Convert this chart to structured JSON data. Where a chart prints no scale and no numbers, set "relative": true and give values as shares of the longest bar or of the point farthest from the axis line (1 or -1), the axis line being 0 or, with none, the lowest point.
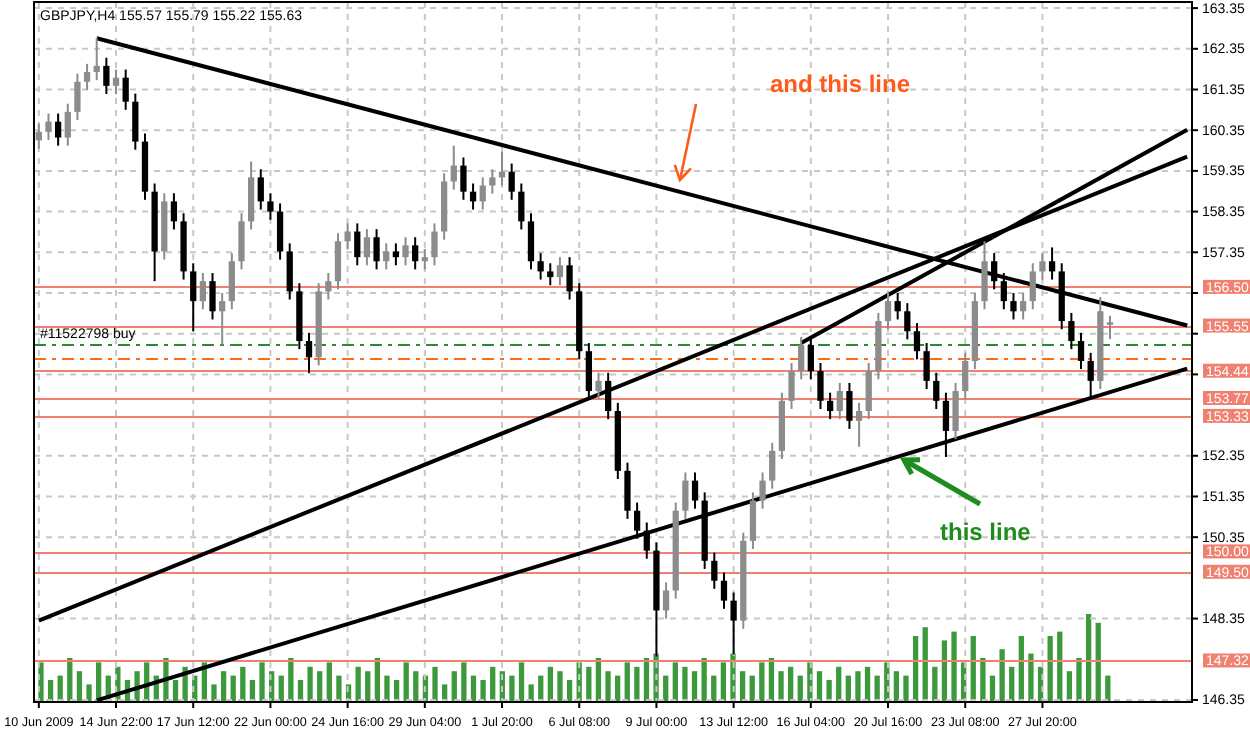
{
  "chart_data": [
    {
      "type": "candlestick",
      "title": "GBPJPY,H4 155.57 155.79 155.22 155.63",
      "categories": [
        "10 Jun 2009",
        null,
        null,
        null,
        null,
        null,
        null,
        null,
        "14 Jun 22:00",
        null,
        null,
        null,
        null,
        null,
        null,
        null,
        "17 Jun 12:00",
        null,
        null,
        null,
        null,
        null,
        null,
        null,
        "22 Jun 00:00",
        null,
        null,
        null,
        null,
        null,
        null,
        null,
        "24 Jun 16:00",
        null,
        null,
        null,
        null,
        null,
        null,
        null,
        "29 Jun 04:00",
        null,
        null,
        null,
        null,
        null,
        null,
        null,
        "1 Jul 20:00",
        null,
        null,
        null,
        null,
        null,
        null,
        null,
        "6 Jul 08:00",
        null,
        null,
        null,
        null,
        null,
        null,
        null,
        "9 Jul 00:00",
        null,
        null,
        null,
        null,
        null,
        null,
        null,
        "13 Jul 12:00",
        null,
        null,
        null,
        null,
        null,
        null,
        null,
        "16 Jul 04:00",
        null,
        null,
        null,
        null,
        null,
        null,
        null,
        "20 Jul 16:00",
        null,
        null,
        null,
        null,
        null,
        null,
        null,
        "23 Jul 08:00",
        null,
        null,
        null,
        null,
        null,
        null,
        null,
        "27 Jul 20:00",
        null,
        null,
        null,
        null,
        null,
        null,
        null,
        null,
        null,
        null,
        null,
        null,
        null,
        null,
        null
      ],
      "ohlc": [
        [
          160.1,
          160.51,
          159.9,
          160.31
        ],
        [
          160.31,
          160.76,
          160.11,
          160.56
        ],
        [
          160.56,
          160.76,
          159.97,
          160.17
        ],
        [
          160.17,
          161.0,
          159.97,
          160.8
        ],
        [
          160.8,
          161.74,
          160.6,
          161.54
        ],
        [
          161.54,
          161.98,
          161.34,
          161.78
        ],
        [
          161.78,
          162.62,
          161.58,
          161.93
        ],
        [
          161.93,
          162.13,
          161.24,
          161.44
        ],
        [
          161.44,
          161.84,
          161.24,
          161.64
        ],
        [
          161.64,
          161.84,
          160.85,
          161.05
        ],
        [
          161.05,
          161.25,
          159.87,
          160.07
        ],
        [
          160.07,
          160.27,
          158.64,
          158.84
        ],
        [
          158.84,
          159.04,
          156.64,
          157.37
        ],
        [
          157.37,
          158.8,
          157.17,
          158.6
        ],
        [
          158.6,
          158.8,
          157.91,
          158.11
        ],
        [
          158.11,
          158.31,
          156.68,
          156.88
        ],
        [
          156.88,
          157.08,
          155.41,
          156.15
        ],
        [
          156.15,
          156.84,
          155.95,
          156.64
        ],
        [
          156.64,
          156.84,
          155.7,
          155.9
        ],
        [
          155.9,
          156.35,
          155.07,
          156.15
        ],
        [
          156.15,
          157.33,
          155.95,
          157.13
        ],
        [
          157.13,
          158.31,
          156.93,
          158.11
        ],
        [
          158.11,
          159.58,
          157.91,
          159.19
        ],
        [
          159.19,
          159.39,
          158.4,
          158.6
        ],
        [
          158.6,
          158.8,
          158.15,
          158.35
        ],
        [
          158.35,
          158.55,
          157.17,
          157.37
        ],
        [
          157.37,
          157.57,
          156.19,
          156.39
        ],
        [
          156.39,
          156.59,
          154.97,
          155.17
        ],
        [
          155.17,
          155.37,
          154.38,
          154.77
        ],
        [
          154.77,
          156.59,
          154.57,
          156.39
        ],
        [
          156.39,
          156.84,
          156.19,
          156.64
        ],
        [
          156.64,
          157.82,
          156.44,
          157.62
        ],
        [
          157.62,
          158.06,
          157.42,
          157.86
        ],
        [
          157.86,
          158.06,
          157.03,
          157.23
        ],
        [
          157.23,
          157.92,
          157.03,
          157.72
        ],
        [
          157.72,
          157.92,
          156.93,
          157.13
        ],
        [
          157.13,
          157.57,
          156.93,
          157.37
        ],
        [
          157.37,
          157.57,
          157.03,
          157.23
        ],
        [
          157.23,
          157.72,
          157.03,
          157.52
        ],
        [
          157.52,
          157.72,
          156.93,
          157.13
        ],
        [
          157.13,
          157.43,
          156.93,
          157.23
        ],
        [
          157.23,
          158.06,
          157.03,
          157.86
        ],
        [
          157.86,
          159.29,
          157.66,
          159.09
        ],
        [
          159.09,
          159.97,
          158.89,
          159.48
        ],
        [
          159.48,
          159.68,
          158.64,
          158.84
        ],
        [
          158.84,
          159.04,
          158.4,
          158.6
        ],
        [
          158.6,
          159.19,
          158.4,
          158.99
        ],
        [
          158.99,
          159.39,
          158.79,
          159.19
        ],
        [
          159.19,
          159.82,
          158.99,
          159.33
        ],
        [
          159.33,
          159.53,
          158.64,
          158.84
        ],
        [
          158.84,
          159.04,
          157.91,
          158.11
        ],
        [
          158.11,
          158.31,
          156.93,
          157.13
        ],
        [
          157.13,
          157.33,
          156.68,
          156.88
        ],
        [
          156.88,
          157.08,
          156.54,
          156.74
        ],
        [
          156.74,
          157.23,
          156.54,
          157.03
        ],
        [
          157.03,
          157.23,
          156.19,
          156.39
        ],
        [
          156.39,
          156.59,
          154.72,
          154.92
        ],
        [
          154.92,
          155.12,
          153.74,
          153.94
        ],
        [
          153.94,
          154.39,
          153.74,
          154.19
        ],
        [
          154.19,
          154.39,
          153.25,
          153.45
        ],
        [
          153.45,
          153.65,
          151.78,
          151.98
        ],
        [
          151.98,
          152.18,
          150.8,
          151.0
        ],
        [
          151.0,
          151.2,
          150.31,
          150.51
        ],
        [
          150.51,
          150.71,
          149.82,
          150.02
        ],
        [
          150.02,
          150.22,
          147.42,
          148.55
        ],
        [
          148.55,
          149.24,
          148.35,
          149.04
        ],
        [
          149.04,
          151.2,
          148.84,
          151.0
        ],
        [
          151.0,
          151.94,
          150.8,
          151.74
        ],
        [
          151.74,
          151.94,
          151.05,
          151.25
        ],
        [
          151.25,
          151.45,
          149.57,
          149.77
        ],
        [
          149.77,
          149.97,
          149.08,
          149.28
        ],
        [
          149.28,
          149.48,
          148.59,
          148.79
        ],
        [
          148.79,
          148.99,
          147.47,
          148.3
        ],
        [
          148.3,
          150.46,
          148.1,
          150.26
        ],
        [
          150.26,
          151.45,
          150.06,
          151.25
        ],
        [
          151.25,
          151.94,
          151.05,
          151.74
        ],
        [
          151.74,
          152.67,
          151.54,
          152.47
        ],
        [
          152.47,
          153.9,
          152.27,
          153.7
        ],
        [
          153.7,
          154.63,
          153.5,
          154.43
        ],
        [
          154.43,
          155.27,
          154.23,
          155.07
        ],
        [
          155.07,
          155.27,
          154.23,
          154.43
        ],
        [
          154.43,
          154.63,
          153.5,
          153.7
        ],
        [
          153.7,
          153.9,
          153.25,
          153.45
        ],
        [
          153.45,
          154.14,
          153.25,
          153.94
        ],
        [
          153.94,
          154.14,
          153.01,
          153.21
        ],
        [
          153.21,
          153.65,
          152.57,
          153.45
        ],
        [
          153.45,
          154.63,
          153.25,
          154.43
        ],
        [
          154.43,
          155.86,
          154.23,
          155.66
        ],
        [
          155.66,
          156.35,
          155.46,
          156.15
        ],
        [
          156.15,
          156.35,
          155.7,
          155.9
        ],
        [
          155.9,
          156.1,
          155.21,
          155.41
        ],
        [
          155.41,
          155.61,
          154.72,
          154.92
        ],
        [
          154.92,
          155.12,
          153.99,
          154.19
        ],
        [
          154.19,
          154.39,
          153.5,
          153.7
        ],
        [
          153.7,
          153.9,
          152.32,
          152.96
        ],
        [
          152.96,
          154.14,
          152.76,
          153.94
        ],
        [
          153.94,
          154.88,
          153.74,
          154.68
        ],
        [
          154.68,
          156.35,
          154.48,
          156.15
        ],
        [
          156.15,
          157.62,
          155.95,
          157.13
        ],
        [
          157.13,
          157.33,
          156.44,
          156.64
        ],
        [
          156.64,
          156.84,
          155.95,
          156.15
        ],
        [
          156.15,
          156.35,
          155.7,
          155.9
        ],
        [
          155.9,
          156.35,
          155.7,
          156.15
        ],
        [
          156.15,
          157.08,
          155.95,
          156.88
        ],
        [
          156.88,
          157.33,
          156.68,
          157.13
        ],
        [
          157.13,
          157.47,
          156.68,
          156.88
        ],
        [
          156.88,
          157.08,
          155.46,
          155.66
        ],
        [
          155.66,
          155.86,
          154.97,
          155.17
        ],
        [
          155.17,
          155.37,
          154.48,
          154.68
        ],
        [
          154.68,
          154.88,
          153.79,
          154.19
        ],
        [
          154.19,
          156.25,
          153.99,
          155.9
        ],
        [
          155.57,
          155.79,
          155.22,
          155.63
        ],
        null,
        null,
        null,
        null,
        null,
        null,
        null,
        null
      ],
      "series": [
        {
          "type": "line",
          "color": "#000000",
          "values": [
            null,
            null,
            null,
            null,
            null,
            null,
            162.61,
            null,
            null,
            null,
            null,
            null,
            null,
            null,
            null,
            null,
            null,
            null,
            null,
            null,
            null,
            null,
            null,
            null,
            null,
            null,
            null,
            null,
            null,
            null,
            null,
            null,
            null,
            null,
            null,
            null,
            null,
            null,
            null,
            null,
            null,
            null,
            null,
            null,
            null,
            null,
            null,
            null,
            null,
            null,
            null,
            null,
            null,
            null,
            null,
            null,
            null,
            null,
            null,
            null,
            null,
            null,
            null,
            null,
            null,
            null,
            null,
            null,
            null,
            null,
            null,
            null,
            null,
            null,
            null,
            null,
            null,
            null,
            null,
            null,
            null,
            null,
            null,
            null,
            null,
            null,
            null,
            null,
            null,
            null,
            null,
            null,
            null,
            null,
            null,
            null,
            null,
            null,
            null,
            null,
            null,
            null,
            null,
            null,
            null,
            null,
            null,
            null,
            null,
            null,
            null,
            null,
            null,
            null,
            null,
            null,
            null,
            null,
            null,
            155.55
          ]
        },
        {
          "type": "line",
          "color": "#000000",
          "values": [
            148.3,
            null,
            null,
            null,
            null,
            null,
            null,
            null,
            null,
            null,
            null,
            null,
            null,
            null,
            null,
            null,
            null,
            null,
            null,
            null,
            null,
            null,
            null,
            null,
            null,
            null,
            null,
            null,
            null,
            null,
            null,
            null,
            null,
            null,
            null,
            null,
            null,
            null,
            null,
            null,
            null,
            null,
            null,
            null,
            null,
            null,
            null,
            null,
            null,
            null,
            null,
            null,
            null,
            null,
            null,
            null,
            null,
            null,
            null,
            null,
            null,
            null,
            null,
            null,
            null,
            null,
            null,
            null,
            null,
            null,
            null,
            null,
            null,
            null,
            null,
            null,
            null,
            null,
            null,
            null,
            null,
            null,
            null,
            null,
            null,
            null,
            null,
            null,
            null,
            null,
            null,
            null,
            null,
            null,
            null,
            null,
            null,
            null,
            null,
            null,
            null,
            null,
            null,
            null,
            null,
            null,
            null,
            null,
            null,
            null,
            null,
            null,
            null,
            null,
            null,
            null,
            null,
            null,
            null,
            159.7
          ]
        },
        {
          "type": "line",
          "color": "#000000",
          "values": [
            null,
            null,
            null,
            null,
            null,
            null,
            null,
            null,
            null,
            null,
            null,
            null,
            null,
            null,
            null,
            null,
            null,
            null,
            null,
            null,
            null,
            null,
            null,
            null,
            null,
            null,
            null,
            null,
            null,
            null,
            null,
            null,
            null,
            null,
            null,
            null,
            null,
            null,
            null,
            null,
            null,
            null,
            null,
            null,
            null,
            null,
            null,
            null,
            null,
            null,
            null,
            null,
            null,
            null,
            null,
            null,
            null,
            null,
            null,
            null,
            null,
            null,
            null,
            null,
            null,
            null,
            null,
            null,
            null,
            null,
            null,
            null,
            null,
            null,
            null,
            null,
            null,
            null,
            null,
            155.12,
            null,
            null,
            null,
            null,
            null,
            null,
            null,
            null,
            null,
            null,
            null,
            null,
            null,
            null,
            null,
            null,
            null,
            null,
            null,
            null,
            null,
            null,
            null,
            null,
            null,
            null,
            null,
            null,
            null,
            null,
            null,
            null,
            null,
            null,
            null,
            null,
            null,
            null,
            null,
            160.36
          ]
        },
        {
          "type": "line",
          "color": "#000000",
          "values": [
            null,
            null,
            null,
            null,
            null,
            null,
            146.34,
            null,
            null,
            null,
            null,
            null,
            null,
            null,
            null,
            null,
            null,
            null,
            null,
            null,
            null,
            null,
            null,
            null,
            null,
            null,
            null,
            null,
            null,
            null,
            null,
            null,
            null,
            null,
            null,
            null,
            null,
            null,
            null,
            null,
            null,
            null,
            null,
            null,
            null,
            null,
            null,
            null,
            null,
            null,
            null,
            null,
            null,
            null,
            null,
            null,
            null,
            null,
            null,
            null,
            null,
            null,
            null,
            null,
            null,
            null,
            null,
            null,
            null,
            null,
            null,
            null,
            null,
            null,
            null,
            null,
            null,
            null,
            null,
            null,
            null,
            null,
            null,
            null,
            null,
            null,
            null,
            null,
            null,
            null,
            null,
            null,
            null,
            null,
            null,
            null,
            null,
            null,
            null,
            null,
            null,
            null,
            null,
            null,
            null,
            null,
            null,
            null,
            null,
            null,
            null,
            null,
            null,
            null,
            null,
            null,
            null,
            null,
            null,
            154.49
          ]
        }
      ],
      "ylim": [
        146.3,
        163.5
      ],
      "yticks": [
        163.35,
        162.35,
        161.35,
        160.35,
        159.35,
        158.35,
        157.35,
        {
          "value": 156.35,
          "label": null
        },
        {
          "value": 155.35,
          "label": null
        },
        {
          "value": 154.35,
          "label": null
        },
        152.35,
        151.35,
        150.35,
        148.35,
        146.35
      ],
      "grid": true,
      "ref_lines": [
        {
          "axis": "y",
          "value": 156.5,
          "label": "156.50",
          "color": "#f08070"
        },
        {
          "axis": "y",
          "value": 155.55,
          "label": "155.55",
          "color": "#f08070"
        },
        {
          "axis": "y",
          "value": 155.1,
          "label": "#11522798 buy",
          "color": "#2e8b2e",
          "line_style": "dashed"
        },
        {
          "axis": "y",
          "value": 154.77,
          "color": "#ff6a1a",
          "line_style": "dashed"
        },
        {
          "axis": "y",
          "value": 154.44,
          "label": "154.44",
          "color": "#f08070"
        },
        {
          "axis": "y",
          "value": 153.77,
          "label": "153.77",
          "color": "#f08070"
        },
        {
          "axis": "y",
          "value": 153.33,
          "label": "153.33",
          "color": "#f08070"
        },
        {
          "axis": "y",
          "value": 150.0,
          "label": "150.00",
          "color": "#f08070"
        },
        {
          "axis": "y",
          "value": 149.5,
          "label": "149.50",
          "color": "#f08070"
        },
        {
          "axis": "y",
          "value": 147.32,
          "label": "147.32",
          "color": "#f08070"
        }
      ],
      "annotations": [
        "and this line",
        "this line"
      ]
    },
    {
      "type": "bar",
      "relative": true,
      "tick_labels": false,
      "color": "#3c9a3c",
      "categories": [
        null,
        null,
        null,
        null,
        null,
        null,
        null,
        null,
        null,
        null,
        null,
        null,
        null,
        null,
        null,
        null,
        null,
        null,
        null,
        null,
        null,
        null,
        null,
        null,
        null,
        null,
        null,
        null,
        null,
        null,
        null,
        null,
        null,
        null,
        null,
        null,
        null,
        null,
        null,
        null,
        null,
        null,
        null,
        null,
        null,
        null,
        null,
        null,
        null,
        null,
        null,
        null,
        null,
        null,
        null,
        null,
        null,
        null,
        null,
        null,
        null,
        null,
        null,
        null,
        null,
        null,
        null,
        null,
        null,
        null,
        null,
        null,
        null,
        null,
        null,
        null,
        null,
        null,
        null,
        null,
        null,
        null,
        null,
        null,
        null,
        null,
        null,
        null,
        null,
        null,
        null,
        null,
        null,
        null,
        null,
        null,
        null,
        null,
        null,
        null,
        null,
        null,
        null,
        null,
        null,
        null,
        null,
        null,
        null,
        null,
        null,
        null
      ],
      "values": [
        0.45,
        0.25,
        0.3,
        0.5,
        0.35,
        0.2,
        0.45,
        0.3,
        0.4,
        0.25,
        0.35,
        0.45,
        0.3,
        0.5,
        0.25,
        0.4,
        0.3,
        0.45,
        0.2,
        0.35,
        0.3,
        0.4,
        0.25,
        0.45,
        0.35,
        0.3,
        0.5,
        0.25,
        0.4,
        0.35,
        0.45,
        0.3,
        0.2,
        0.4,
        0.35,
        0.5,
        0.3,
        0.25,
        0.45,
        0.35,
        0.3,
        0.4,
        0.2,
        0.35,
        0.45,
        0.3,
        0.25,
        0.4,
        0.35,
        0.3,
        0.45,
        0.2,
        0.3,
        0.4,
        0.35,
        0.25,
        0.45,
        0.4,
        0.5,
        0.35,
        0.3,
        0.45,
        0.4,
        0.5,
        0.55,
        0.3,
        0.45,
        0.4,
        0.35,
        0.5,
        0.3,
        0.45,
        0.55,
        0.35,
        0.3,
        0.45,
        0.5,
        0.35,
        0.4,
        0.3,
        0.45,
        0.35,
        0.25,
        0.4,
        0.3,
        0.35,
        0.4,
        0.3,
        0.45,
        0.35,
        0.3,
        0.75,
        0.85,
        0.4,
        0.7,
        0.8,
        0.45,
        0.75,
        0.5,
        0.3,
        0.6,
        0.4,
        0.75,
        0.55,
        0.4,
        0.75,
        0.8,
        0.35,
        0.5,
        1.0,
        0.9,
        0.3
      ]
    }
  ]
}
